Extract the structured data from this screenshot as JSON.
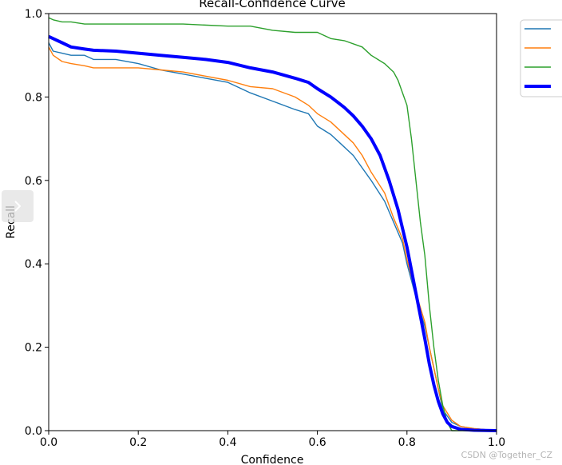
{
  "chart_data": {
    "type": "line",
    "title": "Recall-Confidence Curve",
    "xlabel": "Confidence",
    "ylabel": "Recall",
    "xlim": [
      0,
      1
    ],
    "ylim": [
      0,
      1
    ],
    "grid": false,
    "legend_placement": "outside-top-right",
    "xticks": [
      "0.0",
      "0.2",
      "0.4",
      "0.6",
      "0.8",
      "1.0"
    ],
    "yticks": [
      "0.0",
      "0.2",
      "0.4",
      "0.6",
      "0.8",
      "1.0"
    ],
    "series": [
      {
        "color": "#1f77b4",
        "style": "thin",
        "x": [
          0,
          0.01,
          0.03,
          0.05,
          0.08,
          0.1,
          0.15,
          0.2,
          0.25,
          0.3,
          0.35,
          0.4,
          0.45,
          0.5,
          0.55,
          0.58,
          0.6,
          0.63,
          0.65,
          0.68,
          0.7,
          0.72,
          0.75,
          0.77,
          0.79,
          0.8,
          0.82,
          0.84,
          0.85,
          0.86,
          0.87,
          0.88,
          0.9,
          0.92,
          0.95,
          1.0
        ],
        "y": [
          0.93,
          0.91,
          0.905,
          0.9,
          0.9,
          0.89,
          0.89,
          0.88,
          0.865,
          0.855,
          0.845,
          0.835,
          0.81,
          0.79,
          0.77,
          0.76,
          0.73,
          0.71,
          0.69,
          0.66,
          0.63,
          0.6,
          0.55,
          0.5,
          0.45,
          0.4,
          0.32,
          0.25,
          0.2,
          0.15,
          0.1,
          0.05,
          0.02,
          0.01,
          0.005,
          0.0
        ]
      },
      {
        "color": "#ff7f0e",
        "style": "thin",
        "x": [
          0,
          0.01,
          0.03,
          0.05,
          0.08,
          0.1,
          0.15,
          0.2,
          0.25,
          0.3,
          0.35,
          0.4,
          0.45,
          0.5,
          0.55,
          0.58,
          0.6,
          0.63,
          0.65,
          0.68,
          0.7,
          0.72,
          0.75,
          0.77,
          0.79,
          0.8,
          0.82,
          0.84,
          0.85,
          0.86,
          0.87,
          0.88,
          0.9,
          0.92,
          0.95,
          1.0
        ],
        "y": [
          0.92,
          0.9,
          0.885,
          0.88,
          0.875,
          0.87,
          0.87,
          0.87,
          0.865,
          0.86,
          0.85,
          0.84,
          0.825,
          0.82,
          0.8,
          0.78,
          0.76,
          0.74,
          0.72,
          0.69,
          0.66,
          0.62,
          0.57,
          0.51,
          0.46,
          0.41,
          0.33,
          0.26,
          0.2,
          0.15,
          0.1,
          0.06,
          0.025,
          0.01,
          0.005,
          0.0
        ]
      },
      {
        "color": "#2ca02c",
        "style": "thin",
        "x": [
          0,
          0.01,
          0.03,
          0.05,
          0.08,
          0.1,
          0.15,
          0.2,
          0.3,
          0.4,
          0.45,
          0.5,
          0.55,
          0.6,
          0.63,
          0.66,
          0.7,
          0.72,
          0.75,
          0.77,
          0.78,
          0.8,
          0.81,
          0.82,
          0.83,
          0.84,
          0.85,
          0.86,
          0.87,
          0.88,
          0.89,
          0.9,
          0.92,
          0.95,
          1.0
        ],
        "y": [
          0.99,
          0.985,
          0.98,
          0.98,
          0.975,
          0.975,
          0.975,
          0.975,
          0.975,
          0.97,
          0.97,
          0.96,
          0.955,
          0.955,
          0.94,
          0.935,
          0.92,
          0.9,
          0.88,
          0.86,
          0.84,
          0.78,
          0.7,
          0.6,
          0.5,
          0.42,
          0.3,
          0.2,
          0.12,
          0.06,
          0.02,
          0.0,
          0.0,
          0.0,
          0.0
        ]
      },
      {
        "color": "#0000ff",
        "style": "thick",
        "x": [
          0,
          0.01,
          0.03,
          0.05,
          0.08,
          0.1,
          0.15,
          0.2,
          0.25,
          0.3,
          0.35,
          0.4,
          0.45,
          0.5,
          0.55,
          0.58,
          0.6,
          0.63,
          0.66,
          0.68,
          0.7,
          0.72,
          0.74,
          0.76,
          0.78,
          0.8,
          0.82,
          0.84,
          0.85,
          0.86,
          0.87,
          0.88,
          0.89,
          0.9,
          0.92,
          0.95,
          1.0
        ],
        "y": [
          0.945,
          0.94,
          0.93,
          0.92,
          0.915,
          0.912,
          0.91,
          0.905,
          0.9,
          0.895,
          0.89,
          0.883,
          0.87,
          0.86,
          0.845,
          0.835,
          0.82,
          0.8,
          0.775,
          0.755,
          0.73,
          0.7,
          0.66,
          0.6,
          0.53,
          0.44,
          0.33,
          0.22,
          0.16,
          0.11,
          0.07,
          0.04,
          0.02,
          0.01,
          0.003,
          0.001,
          0.0
        ]
      }
    ]
  },
  "watermark": "CSDN @Together_CZ",
  "ui": {
    "side_handle_icon": "chevron-right-icon"
  }
}
